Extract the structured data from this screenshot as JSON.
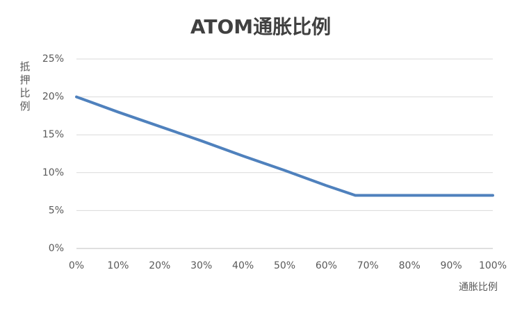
{
  "chart_data": {
    "type": "line",
    "title": "ATOM通胀比例",
    "x_label": "通胀比例",
    "y_label": "抵押比例",
    "x": [
      0,
      10,
      20,
      30,
      40,
      50,
      60,
      67,
      70,
      80,
      90,
      100
    ],
    "series": [
      {
        "name": "抵押比例",
        "color": "#4f81bd",
        "values": [
          20,
          18,
          16.1,
          14.2,
          12.2,
          10.3,
          8.3,
          7,
          7,
          7,
          7,
          7
        ]
      }
    ],
    "xlim": [
      0,
      100
    ],
    "xticks": [
      {
        "value": 0,
        "label": "0%"
      },
      {
        "value": 10,
        "label": "10%"
      },
      {
        "value": 20,
        "label": "20%"
      },
      {
        "value": 30,
        "label": "30%"
      },
      {
        "value": 40,
        "label": "40%"
      },
      {
        "value": 50,
        "label": "50%"
      },
      {
        "value": 60,
        "label": "60%"
      },
      {
        "value": 70,
        "label": "70%"
      },
      {
        "value": 80,
        "label": "80%"
      },
      {
        "value": 90,
        "label": "90%"
      },
      {
        "value": 100,
        "label": "100%"
      }
    ],
    "ylim": [
      0,
      25
    ],
    "yticks": [
      {
        "value": 0,
        "label": "0%"
      },
      {
        "value": 5,
        "label": "5%"
      },
      {
        "value": 10,
        "label": "10%"
      },
      {
        "value": 15,
        "label": "15%"
      },
      {
        "value": 20,
        "label": "20%"
      },
      {
        "value": 25,
        "label": "25%"
      }
    ],
    "grid": true
  }
}
